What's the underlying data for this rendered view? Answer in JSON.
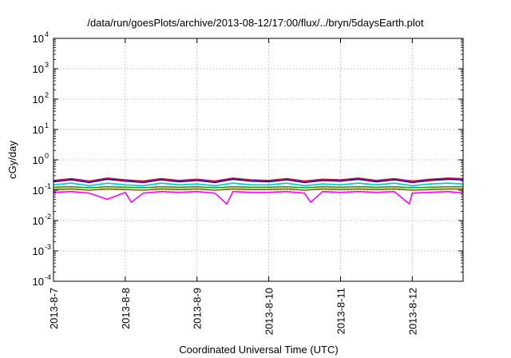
{
  "chart_data": {
    "type": "line",
    "title": "/data/run/goesPlots/archive/2013-08-12/17:00/flux/../bryn/5daysEarth.plot",
    "xlabel": "Coordinated Universal Time (UTC)",
    "ylabel": "cGy/day",
    "yscale": "log",
    "ylim": [
      0.0001,
      10000
    ],
    "y_ticks": [
      {
        "value": 0.0001,
        "base": "10",
        "exp": "-4"
      },
      {
        "value": 0.001,
        "base": "10",
        "exp": "-3"
      },
      {
        "value": 0.01,
        "base": "10",
        "exp": "-2"
      },
      {
        "value": 0.1,
        "base": "10",
        "exp": "-1"
      },
      {
        "value": 1,
        "base": "10",
        "exp": "0"
      },
      {
        "value": 10,
        "base": "10",
        "exp": "1"
      },
      {
        "value": 100,
        "base": "10",
        "exp": "2"
      },
      {
        "value": 1000,
        "base": "10",
        "exp": "3"
      },
      {
        "value": 10000,
        "base": "10",
        "exp": "4"
      }
    ],
    "xlim": [
      "2013-08-07T00:00",
      "2013-08-12T17:00"
    ],
    "x_ticks": [
      "2013-8-7",
      "2013-8-8",
      "2013-8-9",
      "2013-8-10",
      "2013-8-11",
      "2013-8-12"
    ],
    "grid": true,
    "series": [
      {
        "color": "#ff0000",
        "points": [
          [
            "2013-08-07T00:00",
            0.21
          ],
          [
            "2013-08-07T06:00",
            0.24
          ],
          [
            "2013-08-07T12:00",
            0.2
          ],
          [
            "2013-08-07T18:00",
            0.25
          ],
          [
            "2013-08-08T00:00",
            0.22
          ],
          [
            "2013-08-08T06:00",
            0.2
          ],
          [
            "2013-08-08T12:00",
            0.24
          ],
          [
            "2013-08-08T18:00",
            0.21
          ],
          [
            "2013-08-09T00:00",
            0.23
          ],
          [
            "2013-08-09T06:00",
            0.2
          ],
          [
            "2013-08-09T12:00",
            0.25
          ],
          [
            "2013-08-09T18:00",
            0.22
          ],
          [
            "2013-08-10T00:00",
            0.21
          ],
          [
            "2013-08-10T06:00",
            0.24
          ],
          [
            "2013-08-10T12:00",
            0.2
          ],
          [
            "2013-08-10T18:00",
            0.23
          ],
          [
            "2013-08-11T00:00",
            0.22
          ],
          [
            "2013-08-11T06:00",
            0.25
          ],
          [
            "2013-08-11T12:00",
            0.21
          ],
          [
            "2013-08-11T18:00",
            0.24
          ],
          [
            "2013-08-12T00:00",
            0.2
          ],
          [
            "2013-08-12T06:00",
            0.23
          ],
          [
            "2013-08-12T12:00",
            0.25
          ],
          [
            "2013-08-12T17:00",
            0.24
          ]
        ]
      },
      {
        "color": "#0000ff",
        "points": [
          [
            "2013-08-07T00:00",
            0.19
          ],
          [
            "2013-08-07T06:00",
            0.22
          ],
          [
            "2013-08-07T12:00",
            0.18
          ],
          [
            "2013-08-07T18:00",
            0.23
          ],
          [
            "2013-08-08T00:00",
            0.2
          ],
          [
            "2013-08-08T06:00",
            0.18
          ],
          [
            "2013-08-08T12:00",
            0.22
          ],
          [
            "2013-08-08T18:00",
            0.19
          ],
          [
            "2013-08-09T00:00",
            0.21
          ],
          [
            "2013-08-09T06:00",
            0.18
          ],
          [
            "2013-08-09T12:00",
            0.23
          ],
          [
            "2013-08-09T18:00",
            0.2
          ],
          [
            "2013-08-10T00:00",
            0.19
          ],
          [
            "2013-08-10T06:00",
            0.22
          ],
          [
            "2013-08-10T12:00",
            0.18
          ],
          [
            "2013-08-10T18:00",
            0.21
          ],
          [
            "2013-08-11T00:00",
            0.2
          ],
          [
            "2013-08-11T06:00",
            0.23
          ],
          [
            "2013-08-11T12:00",
            0.19
          ],
          [
            "2013-08-11T18:00",
            0.22
          ],
          [
            "2013-08-12T00:00",
            0.18
          ],
          [
            "2013-08-12T06:00",
            0.21
          ],
          [
            "2013-08-12T12:00",
            0.23
          ],
          [
            "2013-08-12T17:00",
            0.22
          ]
        ]
      },
      {
        "color": "#00c8c8",
        "points": [
          [
            "2013-08-07T00:00",
            0.15
          ],
          [
            "2013-08-07T06:00",
            0.17
          ],
          [
            "2013-08-07T12:00",
            0.14
          ],
          [
            "2013-08-07T18:00",
            0.17
          ],
          [
            "2013-08-08T00:00",
            0.15
          ],
          [
            "2013-08-08T06:00",
            0.14
          ],
          [
            "2013-08-08T12:00",
            0.17
          ],
          [
            "2013-08-08T18:00",
            0.15
          ],
          [
            "2013-08-09T00:00",
            0.16
          ],
          [
            "2013-08-09T06:00",
            0.14
          ],
          [
            "2013-08-09T12:00",
            0.17
          ],
          [
            "2013-08-09T18:00",
            0.15
          ],
          [
            "2013-08-10T00:00",
            0.15
          ],
          [
            "2013-08-10T06:00",
            0.17
          ],
          [
            "2013-08-10T12:00",
            0.14
          ],
          [
            "2013-08-10T18:00",
            0.16
          ],
          [
            "2013-08-11T00:00",
            0.15
          ],
          [
            "2013-08-11T06:00",
            0.17
          ],
          [
            "2013-08-11T12:00",
            0.15
          ],
          [
            "2013-08-11T18:00",
            0.17
          ],
          [
            "2013-08-12T00:00",
            0.14
          ],
          [
            "2013-08-12T06:00",
            0.16
          ],
          [
            "2013-08-12T12:00",
            0.17
          ],
          [
            "2013-08-12T17:00",
            0.16
          ]
        ]
      },
      {
        "color": "#00b000",
        "points": [
          [
            "2013-08-07T00:00",
            0.125
          ],
          [
            "2013-08-07T06:00",
            0.13
          ],
          [
            "2013-08-07T12:00",
            0.12
          ],
          [
            "2013-08-07T18:00",
            0.13
          ],
          [
            "2013-08-08T00:00",
            0.125
          ],
          [
            "2013-08-08T06:00",
            0.12
          ],
          [
            "2013-08-08T12:00",
            0.13
          ],
          [
            "2013-08-08T18:00",
            0.125
          ],
          [
            "2013-08-09T00:00",
            0.13
          ],
          [
            "2013-08-09T06:00",
            0.12
          ],
          [
            "2013-08-09T12:00",
            0.13
          ],
          [
            "2013-08-09T18:00",
            0.125
          ],
          [
            "2013-08-10T00:00",
            0.125
          ],
          [
            "2013-08-10T06:00",
            0.13
          ],
          [
            "2013-08-10T12:00",
            0.12
          ],
          [
            "2013-08-10T18:00",
            0.13
          ],
          [
            "2013-08-11T00:00",
            0.125
          ],
          [
            "2013-08-11T06:00",
            0.13
          ],
          [
            "2013-08-11T12:00",
            0.125
          ],
          [
            "2013-08-11T18:00",
            0.13
          ],
          [
            "2013-08-12T00:00",
            0.12
          ],
          [
            "2013-08-12T06:00",
            0.125
          ],
          [
            "2013-08-12T12:00",
            0.13
          ],
          [
            "2013-08-12T17:00",
            0.13
          ]
        ]
      },
      {
        "color": "#a05000",
        "points": [
          [
            "2013-08-07T00:00",
            0.105
          ],
          [
            "2013-08-07T06:00",
            0.11
          ],
          [
            "2013-08-07T12:00",
            0.1
          ],
          [
            "2013-08-07T18:00",
            0.11
          ],
          [
            "2013-08-08T00:00",
            0.105
          ],
          [
            "2013-08-08T06:00",
            0.1
          ],
          [
            "2013-08-08T12:00",
            0.11
          ],
          [
            "2013-08-08T18:00",
            0.105
          ],
          [
            "2013-08-09T00:00",
            0.11
          ],
          [
            "2013-08-09T06:00",
            0.1
          ],
          [
            "2013-08-09T12:00",
            0.11
          ],
          [
            "2013-08-09T18:00",
            0.105
          ],
          [
            "2013-08-10T00:00",
            0.105
          ],
          [
            "2013-08-10T06:00",
            0.11
          ],
          [
            "2013-08-10T12:00",
            0.1
          ],
          [
            "2013-08-10T18:00",
            0.11
          ],
          [
            "2013-08-11T00:00",
            0.105
          ],
          [
            "2013-08-11T06:00",
            0.11
          ],
          [
            "2013-08-11T12:00",
            0.105
          ],
          [
            "2013-08-11T18:00",
            0.11
          ],
          [
            "2013-08-12T00:00",
            0.1
          ],
          [
            "2013-08-12T06:00",
            0.105
          ],
          [
            "2013-08-12T12:00",
            0.11
          ],
          [
            "2013-08-12T17:00",
            0.11
          ]
        ]
      },
      {
        "color": "#ff00ff",
        "points": [
          [
            "2013-08-07T00:00",
            0.085
          ],
          [
            "2013-08-07T06:00",
            0.09
          ],
          [
            "2013-08-07T12:00",
            0.08
          ],
          [
            "2013-08-07T18:00",
            0.05
          ],
          [
            "2013-08-08T00:00",
            0.085
          ],
          [
            "2013-08-08T02:00",
            0.04
          ],
          [
            "2013-08-08T06:00",
            0.08
          ],
          [
            "2013-08-08T12:00",
            0.09
          ],
          [
            "2013-08-08T18:00",
            0.085
          ],
          [
            "2013-08-09T00:00",
            0.09
          ],
          [
            "2013-08-09T06:00",
            0.08
          ],
          [
            "2013-08-09T10:00",
            0.035
          ],
          [
            "2013-08-09T12:00",
            0.09
          ],
          [
            "2013-08-09T18:00",
            0.085
          ],
          [
            "2013-08-10T00:00",
            0.085
          ],
          [
            "2013-08-10T06:00",
            0.09
          ],
          [
            "2013-08-10T12:00",
            0.08
          ],
          [
            "2013-08-10T14:00",
            0.04
          ],
          [
            "2013-08-10T18:00",
            0.09
          ],
          [
            "2013-08-11T00:00",
            0.085
          ],
          [
            "2013-08-11T06:00",
            0.09
          ],
          [
            "2013-08-11T12:00",
            0.085
          ],
          [
            "2013-08-11T18:00",
            0.09
          ],
          [
            "2013-08-11T23:00",
            0.035
          ],
          [
            "2013-08-12T00:00",
            0.08
          ],
          [
            "2013-08-12T06:00",
            0.085
          ],
          [
            "2013-08-12T12:00",
            0.09
          ],
          [
            "2013-08-12T17:00",
            0.08
          ]
        ]
      }
    ]
  }
}
